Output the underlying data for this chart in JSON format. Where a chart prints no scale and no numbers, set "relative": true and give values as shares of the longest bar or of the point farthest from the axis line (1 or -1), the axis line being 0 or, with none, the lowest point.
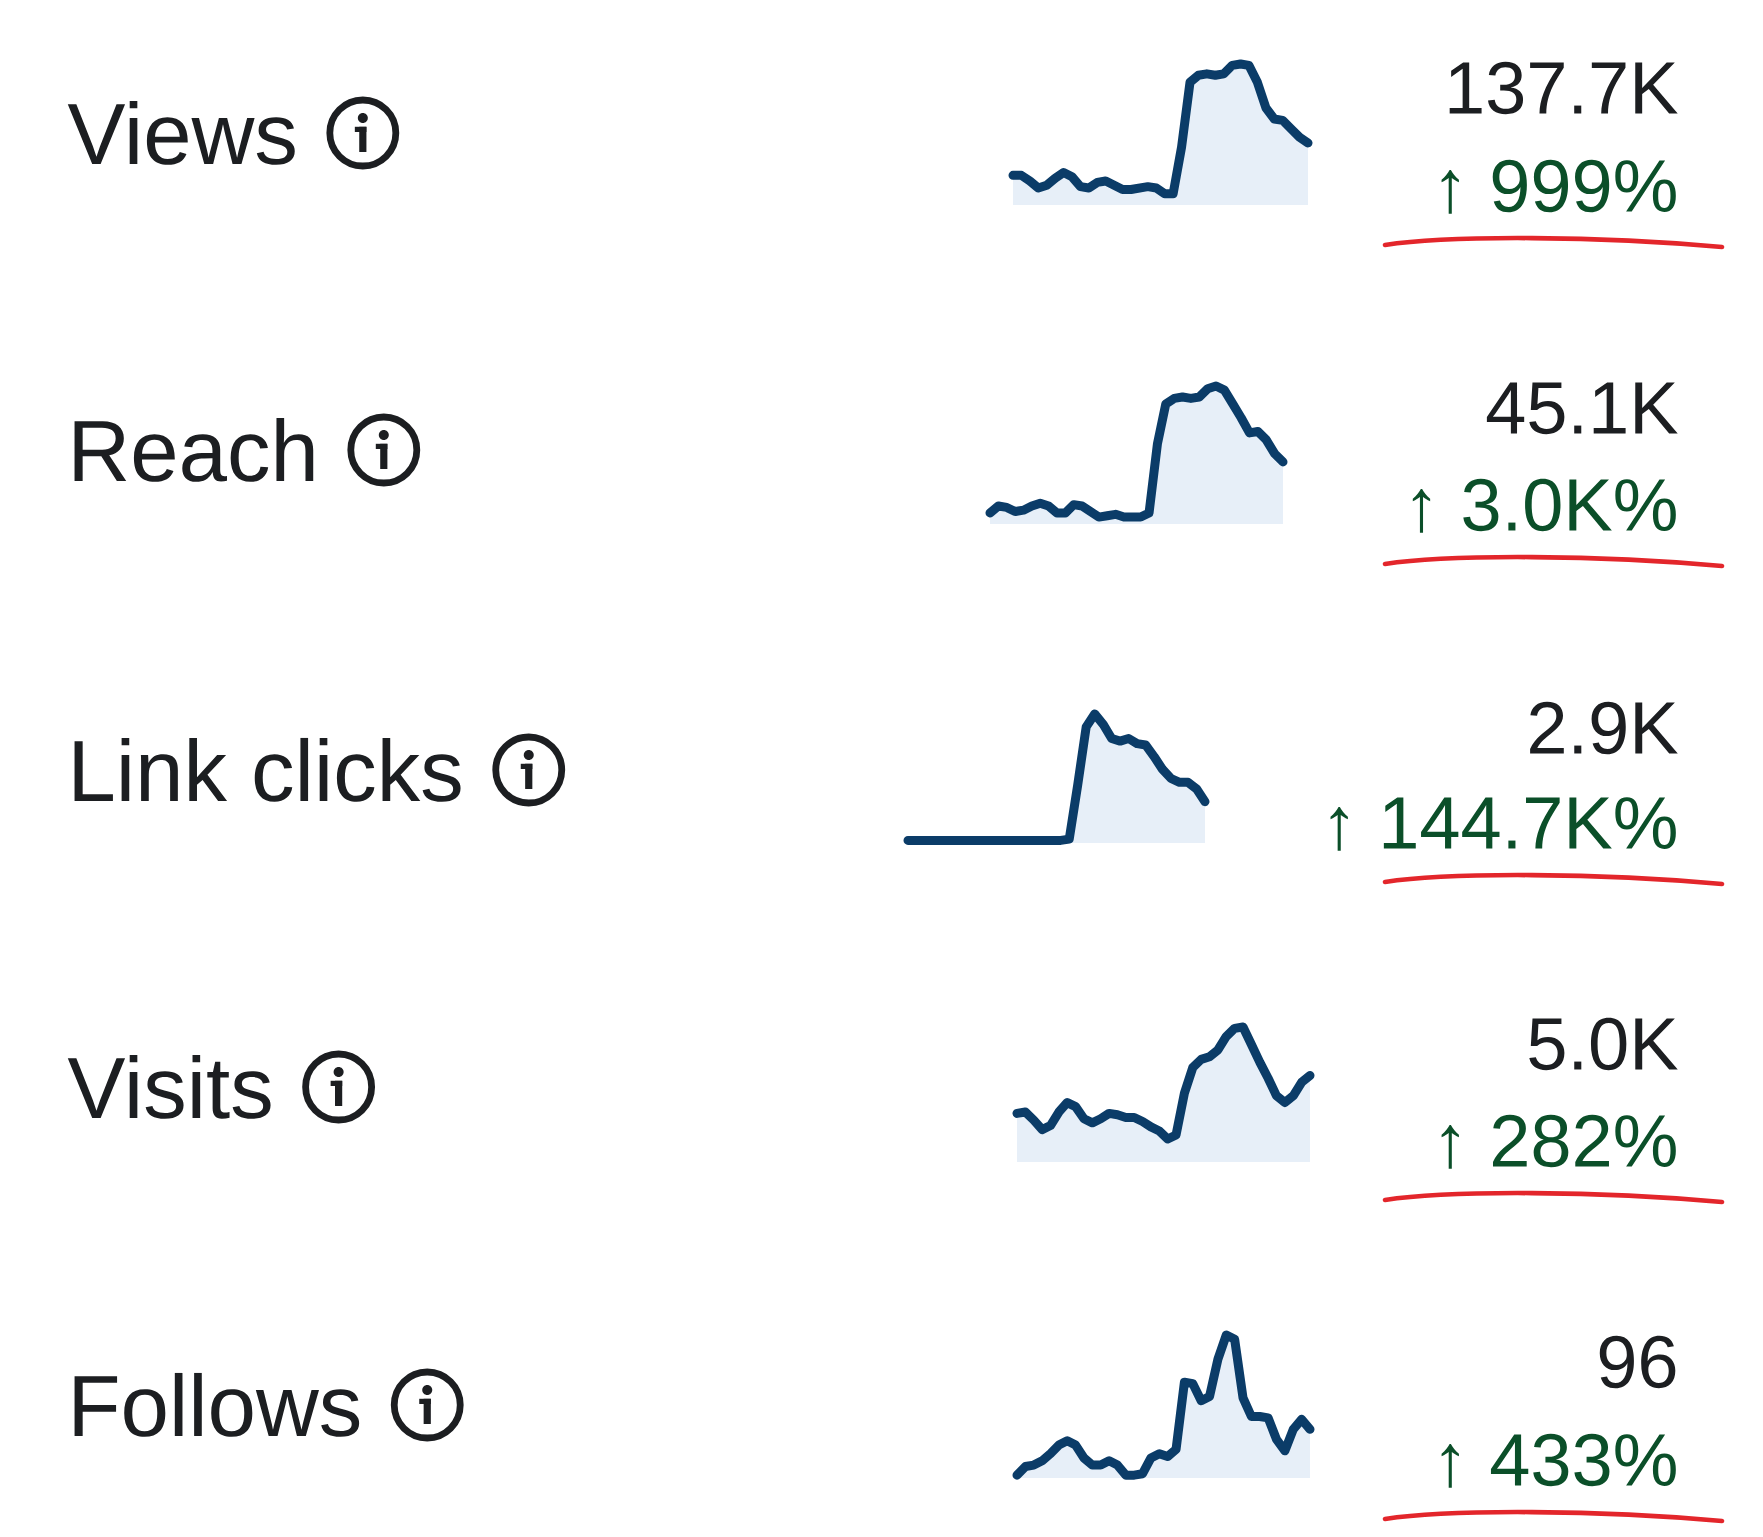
{
  "chart_data": [
    {
      "type": "area",
      "ylabel": "Views",
      "annotations": [
        "137.7K",
        "↑ 999%"
      ],
      "relative": true,
      "tick_labels": false,
      "color": "#0b3c68",
      "categories": [
        null,
        null,
        null,
        null,
        null,
        null,
        null,
        null,
        null,
        null,
        null,
        null,
        null,
        null,
        null,
        null,
        null,
        null,
        null,
        null,
        null,
        null,
        null,
        null,
        null,
        null,
        null,
        null,
        null,
        null,
        null,
        null,
        null,
        null,
        null,
        null
      ],
      "values": [
        0.21,
        0.21,
        0.17,
        0.12,
        0.14,
        0.19,
        0.23,
        0.2,
        0.13,
        0.12,
        0.16,
        0.17,
        0.14,
        0.11,
        0.11,
        0.12,
        0.13,
        0.12,
        0.08,
        0.08,
        0.41,
        0.87,
        0.92,
        0.93,
        0.92,
        0.93,
        0.99,
        1,
        0.99,
        0.87,
        0.69,
        0.61,
        0.6,
        0.54,
        0.48,
        0.44
      ]
    },
    {
      "type": "area",
      "ylabel": "Reach",
      "annotations": [
        "45.1K",
        "↑ 3.0K%"
      ],
      "relative": true,
      "tick_labels": false,
      "color": "#0b3c68",
      "categories": [
        null,
        null,
        null,
        null,
        null,
        null,
        null,
        null,
        null,
        null,
        null,
        null,
        null,
        null,
        null,
        null,
        null,
        null,
        null,
        null,
        null,
        null,
        null,
        null,
        null,
        null,
        null,
        null,
        null,
        null,
        null,
        null,
        null,
        null,
        null,
        null
      ],
      "values": [
        0.08,
        0.13,
        0.12,
        0.09,
        0.1,
        0.13,
        0.15,
        0.13,
        0.08,
        0.08,
        0.14,
        0.13,
        0.09,
        0.05,
        0.06,
        0.07,
        0.05,
        0.05,
        0.05,
        0.08,
        0.58,
        0.87,
        0.91,
        0.92,
        0.91,
        0.92,
        0.98,
        1,
        0.97,
        0.87,
        0.77,
        0.66,
        0.67,
        0.61,
        0.51,
        0.45
      ]
    },
    {
      "type": "area",
      "ylabel": "Link clicks",
      "annotations": [
        "2.9K",
        "↑ 144.7K%"
      ],
      "relative": true,
      "tick_labels": false,
      "color": "#0b3c68",
      "categories": [
        null,
        null,
        null,
        null,
        null,
        null,
        null,
        null,
        null,
        null,
        null,
        null,
        null,
        null,
        null,
        null,
        null,
        null,
        null,
        null,
        null,
        null,
        null,
        null,
        null,
        null,
        null,
        null,
        null,
        null,
        null,
        null,
        null,
        null,
        null,
        null
      ],
      "values": [
        0.02,
        0.02,
        0.02,
        0.02,
        0.02,
        0.02,
        0.02,
        0.02,
        0.02,
        0.02,
        0.02,
        0.02,
        0.02,
        0.02,
        0.02,
        0.02,
        0.02,
        0.02,
        0.02,
        0.03,
        0.45,
        0.9,
        1,
        0.92,
        0.81,
        0.79,
        0.81,
        0.77,
        0.76,
        0.67,
        0.57,
        0.5,
        0.47,
        0.47,
        0.42,
        0.32
      ]
    },
    {
      "type": "area",
      "ylabel": "Visits",
      "annotations": [
        "5.0K",
        "↑ 282%"
      ],
      "relative": true,
      "tick_labels": false,
      "color": "#0b3c68",
      "categories": [
        null,
        null,
        null,
        null,
        null,
        null,
        null,
        null,
        null,
        null,
        null,
        null,
        null,
        null,
        null,
        null,
        null,
        null,
        null,
        null,
        null,
        null,
        null,
        null,
        null,
        null,
        null,
        null,
        null,
        null,
        null,
        null,
        null,
        null,
        null,
        null
      ],
      "values": [
        0.36,
        0.37,
        0.31,
        0.24,
        0.27,
        0.37,
        0.44,
        0.41,
        0.32,
        0.29,
        0.32,
        0.36,
        0.35,
        0.33,
        0.33,
        0.3,
        0.26,
        0.23,
        0.17,
        0.2,
        0.51,
        0.7,
        0.76,
        0.78,
        0.83,
        0.93,
        0.99,
        1,
        0.87,
        0.74,
        0.62,
        0.49,
        0.44,
        0.49,
        0.59,
        0.64
      ]
    },
    {
      "type": "area",
      "ylabel": "Follows",
      "annotations": [
        "96",
        "↑ 433%"
      ],
      "relative": true,
      "tick_labels": false,
      "color": "#0b3c68",
      "categories": [
        null,
        null,
        null,
        null,
        null,
        null,
        null,
        null,
        null,
        null,
        null,
        null,
        null,
        null,
        null,
        null,
        null,
        null,
        null,
        null,
        null,
        null,
        null,
        null,
        null,
        null,
        null,
        null,
        null,
        null,
        null,
        null,
        null,
        null,
        null,
        null
      ],
      "values": [
        0.02,
        0.08,
        0.09,
        0.12,
        0.17,
        0.23,
        0.26,
        0.23,
        0.14,
        0.09,
        0.09,
        0.12,
        0.09,
        0.02,
        0.02,
        0.03,
        0.14,
        0.17,
        0.15,
        0.2,
        0.67,
        0.66,
        0.54,
        0.57,
        0.83,
        1,
        0.97,
        0.56,
        0.43,
        0.43,
        0.42,
        0.27,
        0.19,
        0.34,
        0.41,
        0.34
      ]
    }
  ]
}
